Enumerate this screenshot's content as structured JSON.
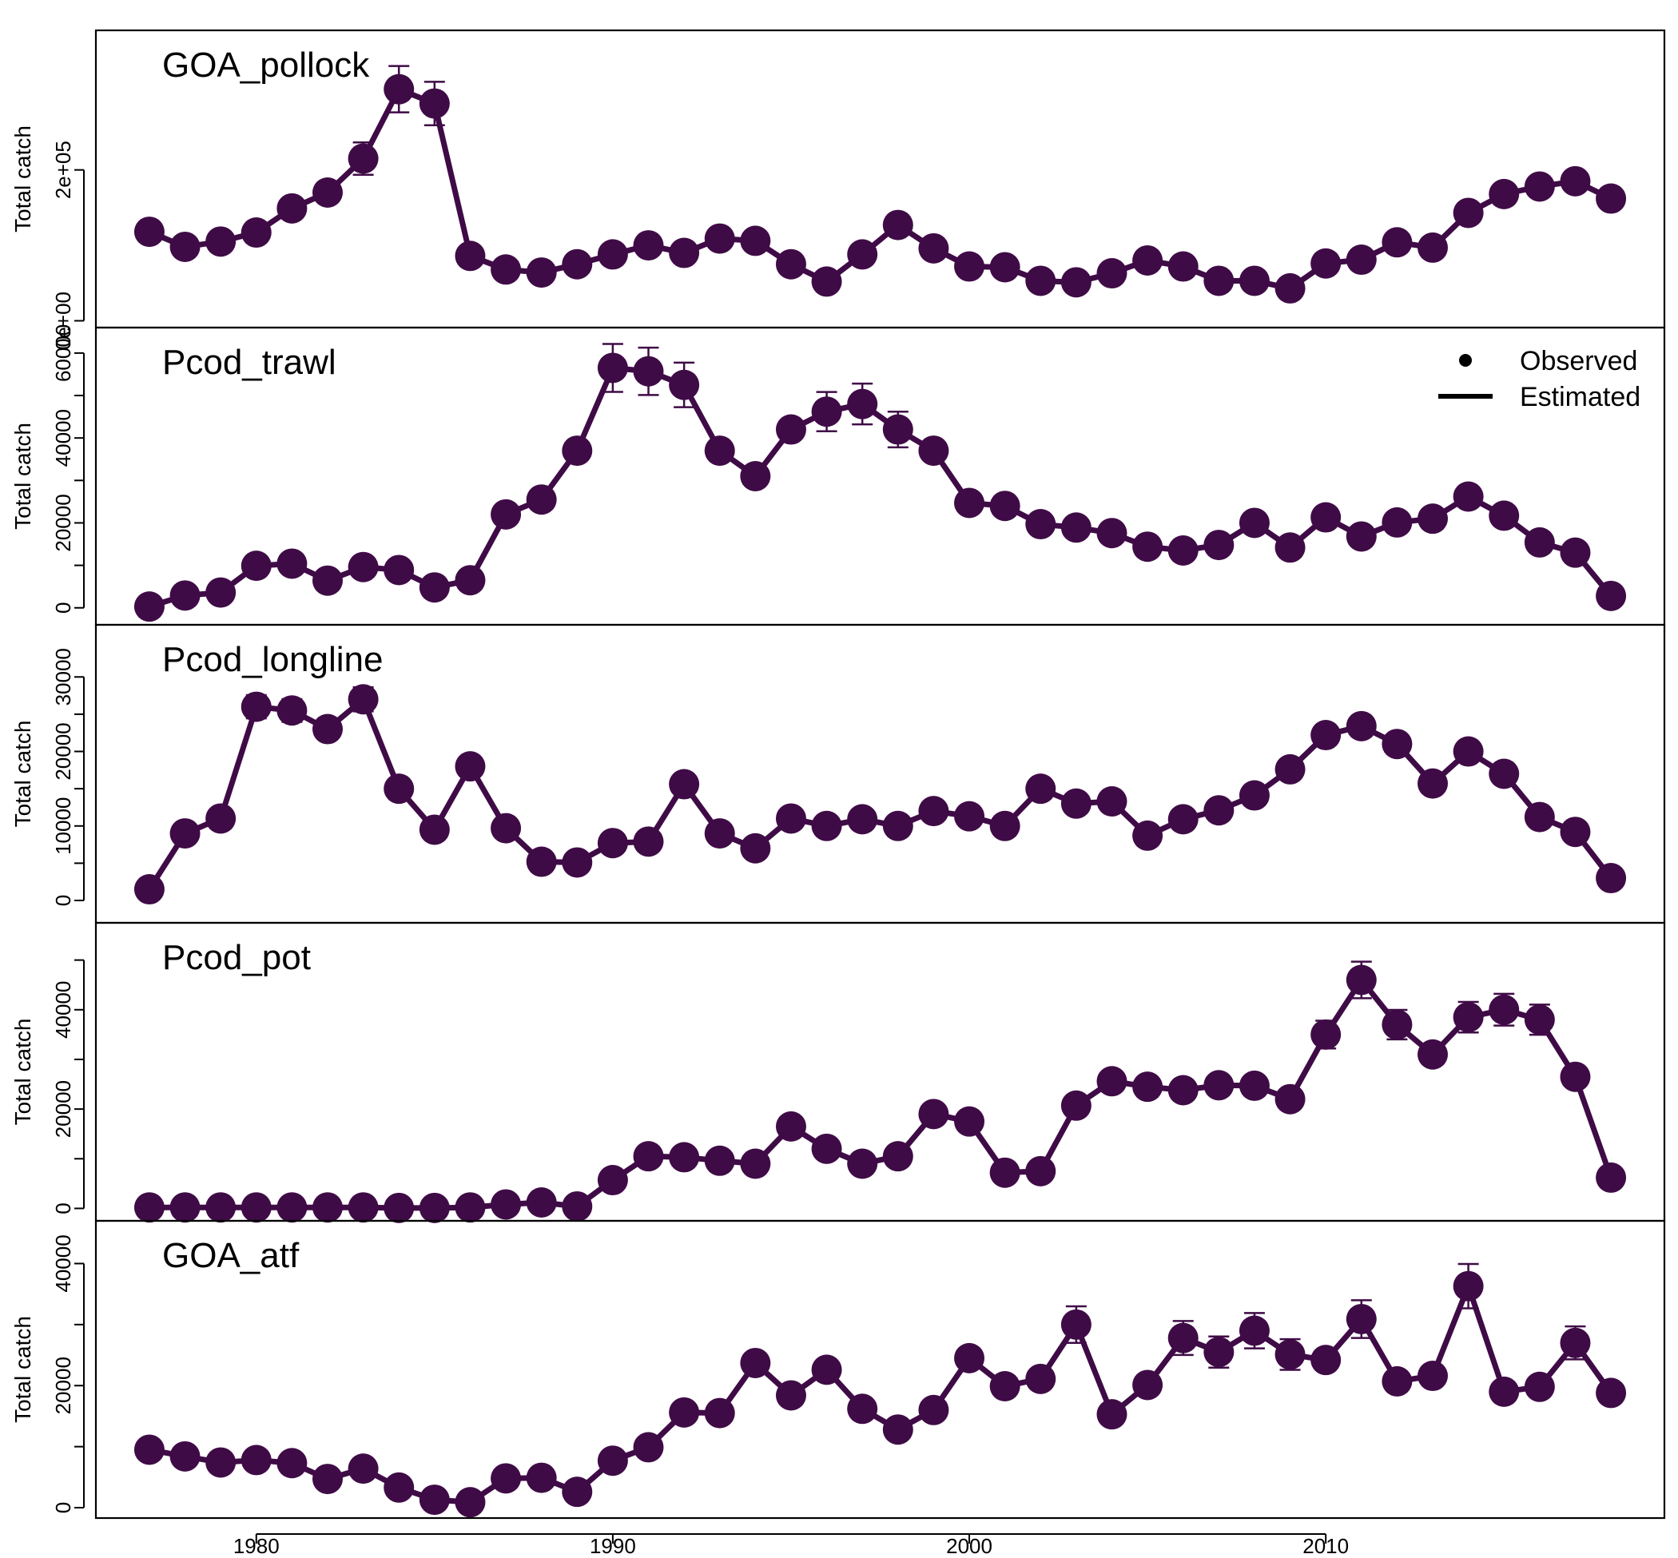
{
  "chart_data": {
    "type": "line",
    "ylabel": "Total catch",
    "xlim": [
      1975.5,
      2019.5
    ],
    "x_ticks": [
      1980,
      1990,
      2000,
      2010
    ],
    "x_tick_labels": [
      "1980",
      "1990",
      "2000",
      "2010"
    ],
    "years": [
      1977,
      1978,
      1979,
      1980,
      1981,
      1982,
      1983,
      1984,
      1985,
      1986,
      1987,
      1988,
      1989,
      1990,
      1991,
      1992,
      1993,
      1994,
      1995,
      1996,
      1997,
      1998,
      1999,
      2000,
      2001,
      2002,
      2003,
      2004,
      2005,
      2006,
      2007,
      2008,
      2009,
      2010,
      2011,
      2012,
      2013,
      2014,
      2015,
      2016,
      2017,
      2018
    ],
    "legend": {
      "placement": "top-right",
      "observed_label": "Observed",
      "estimated_label": "Estimated"
    },
    "color": "#3f0b46",
    "panels": [
      {
        "name": "GOA_pollock",
        "ylim": [
          -9000,
          385000
        ],
        "y_ticks": [
          0,
          200000
        ],
        "y_tick_labels": [
          "0e+00",
          "2e+05"
        ],
        "values": [
          118000,
          98000,
          105000,
          117000,
          149000,
          170000,
          215000,
          307000,
          288000,
          86000,
          68000,
          64000,
          75000,
          88000,
          100000,
          90000,
          109000,
          106000,
          75000,
          52000,
          88000,
          127000,
          96000,
          72000,
          71000,
          53000,
          51000,
          63000,
          80000,
          72000,
          53000,
          53000,
          43000,
          76000,
          81000,
          104000,
          97000,
          143000,
          168000,
          178000,
          185000,
          162000
        ],
        "error_bars": [
          [
            1983,
            0.1
          ],
          [
            1984,
            0.1
          ],
          [
            1985,
            0.1
          ]
        ]
      },
      {
        "name": "Pcod_trawl",
        "ylim": [
          -4000,
          66000
        ],
        "y_ticks": [
          0,
          10000,
          20000,
          30000,
          40000,
          50000,
          60000
        ],
        "y_tick_labels": [
          "0",
          "",
          "20000",
          "",
          "40000",
          "",
          "60000"
        ],
        "values": [
          300,
          2900,
          3600,
          9900,
          10400,
          6400,
          9600,
          8900,
          4800,
          6500,
          22000,
          25500,
          37000,
          56500,
          55700,
          52500,
          37000,
          31000,
          42000,
          46200,
          48000,
          42000,
          37000,
          24700,
          24000,
          19700,
          18900,
          17600,
          14400,
          13500,
          14800,
          20000,
          14200,
          21300,
          16800,
          20100,
          21000,
          26200,
          21700,
          15400,
          13000,
          2800
        ],
        "error_bars": [
          [
            1990,
            0.1
          ],
          [
            1991,
            0.1
          ],
          [
            1992,
            0.1
          ],
          [
            1996,
            0.1
          ],
          [
            1997,
            0.1
          ],
          [
            1998,
            0.1
          ]
        ]
      },
      {
        "name": "Pcod_longline",
        "ylim": [
          -3000,
          37000
        ],
        "y_ticks": [
          0,
          5000,
          10000,
          15000,
          20000,
          25000,
          30000
        ],
        "y_tick_labels": [
          "0",
          "",
          "10000",
          "",
          "20000",
          "",
          "30000"
        ],
        "values": [
          1500,
          9000,
          11000,
          26000,
          25500,
          23000,
          27000,
          15000,
          9500,
          18000,
          9700,
          5200,
          5100,
          7700,
          7900,
          15600,
          9000,
          7000,
          11000,
          10000,
          10900,
          10000,
          12000,
          11300,
          10000,
          15000,
          13000,
          13300,
          8700,
          10900,
          12100,
          14100,
          17600,
          22200,
          23400,
          21000,
          15700,
          20000,
          17000,
          11200,
          9200,
          3000
        ],
        "error_bars": [
          [
            1980,
            0.06
          ],
          [
            1981,
            0.06
          ],
          [
            1982,
            0.06
          ],
          [
            1983,
            0.06
          ],
          [
            1986,
            0.06
          ],
          [
            2010,
            0.06
          ],
          [
            2011,
            0.06
          ],
          [
            2012,
            0.06
          ],
          [
            2014,
            0.06
          ]
        ]
      },
      {
        "name": "Pcod_pot",
        "ylim": [
          -2500,
          57500
        ],
        "y_ticks": [
          0,
          10000,
          20000,
          30000,
          40000,
          50000
        ],
        "y_tick_labels": [
          "0",
          "",
          "20000",
          "",
          "40000",
          ""
        ],
        "values": [
          200,
          200,
          200,
          200,
          200,
          200,
          200,
          100,
          100,
          200,
          800,
          1200,
          400,
          5700,
          10500,
          10300,
          9600,
          9000,
          16500,
          12000,
          9000,
          10500,
          19000,
          17500,
          7200,
          7500,
          20700,
          25600,
          24500,
          23800,
          24800,
          24700,
          22000,
          35000,
          46000,
          37000,
          31000,
          38500,
          40000,
          38000,
          26500,
          6200
        ],
        "error_bars": [
          [
            2010,
            0.08
          ],
          [
            2011,
            0.08
          ],
          [
            2012,
            0.08
          ],
          [
            2014,
            0.08
          ],
          [
            2015,
            0.08
          ],
          [
            2016,
            0.08
          ]
        ]
      },
      {
        "name": "GOA_atf",
        "ylim": [
          -1700,
          47000
        ],
        "y_ticks": [
          0,
          10000,
          20000,
          30000,
          40000
        ],
        "y_tick_labels": [
          "0",
          "",
          "20000",
          "",
          "40000"
        ],
        "values": [
          9500,
          8400,
          7400,
          7800,
          7300,
          4700,
          6400,
          3300,
          1300,
          900,
          4800,
          4900,
          2600,
          7700,
          9900,
          15600,
          15500,
          23700,
          18400,
          22600,
          16200,
          12800,
          16000,
          24500,
          19900,
          21100,
          30000,
          15300,
          20100,
          27800,
          25500,
          29000,
          25100,
          24200,
          30900,
          20700,
          21600,
          36300,
          19000,
          19800,
          27000,
          18800
        ],
        "error_bars": [
          [
            2003,
            0.1
          ],
          [
            2006,
            0.1
          ],
          [
            2007,
            0.1
          ],
          [
            2008,
            0.1
          ],
          [
            2009,
            0.1
          ],
          [
            2011,
            0.1
          ],
          [
            2014,
            0.1
          ],
          [
            2017,
            0.1
          ]
        ]
      }
    ]
  }
}
